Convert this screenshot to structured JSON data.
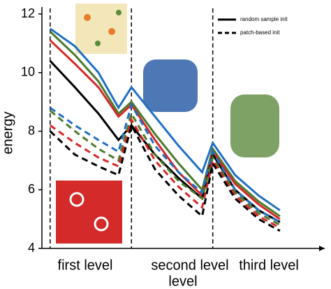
{
  "chart_data": {
    "type": "line",
    "x_label": "level",
    "y_label": "energy",
    "x": [
      0.35,
      1.4,
      2.4,
      3.25,
      3.8,
      4.8,
      5.8,
      6.8,
      7.25,
      8.2,
      9.2,
      10.1
    ],
    "xlim": [
      0,
      12
    ],
    "ylim": [
      4,
      12
    ],
    "yticks": [
      4,
      6,
      8,
      10,
      12
    ],
    "level_boundaries": [
      0.35,
      3.8,
      7.25
    ],
    "level_labels": [
      "first level",
      "second level",
      "third level"
    ],
    "legend": [
      {
        "label": "random sample init",
        "dashed": false
      },
      {
        "label": "patch-based init",
        "dashed": true
      }
    ],
    "series": [
      {
        "color": "#1f6fc4",
        "dashed": false,
        "values": [
          11.5,
          10.9,
          10.0,
          8.8,
          9.5,
          8.5,
          7.5,
          6.6,
          7.6,
          6.5,
          5.8,
          5.3
        ]
      },
      {
        "color": "#4a7a2c",
        "dashed": false,
        "values": [
          11.4,
          10.6,
          9.7,
          8.6,
          9.0,
          7.9,
          6.9,
          6.0,
          7.4,
          6.3,
          5.6,
          5.1
        ]
      },
      {
        "color": "#d62728",
        "dashed": false,
        "values": [
          11.1,
          10.3,
          9.5,
          8.5,
          8.9,
          7.7,
          6.6,
          5.8,
          7.3,
          6.2,
          5.5,
          5.0
        ]
      },
      {
        "color": "#000000",
        "dashed": false,
        "values": [
          10.4,
          9.5,
          8.6,
          7.7,
          8.2,
          7.2,
          6.4,
          5.7,
          7.2,
          6.0,
          5.3,
          4.9
        ]
      },
      {
        "color": "#1f6fc4",
        "dashed": true,
        "values": [
          8.8,
          8.2,
          7.7,
          7.3,
          8.9,
          7.5,
          6.6,
          5.9,
          7.3,
          6.0,
          5.3,
          4.9
        ]
      },
      {
        "color": "#4a7a2c",
        "dashed": true,
        "values": [
          8.7,
          8.0,
          7.4,
          7.0,
          8.6,
          7.2,
          6.3,
          5.7,
          7.1,
          5.9,
          5.2,
          4.8
        ]
      },
      {
        "color": "#d62728",
        "dashed": true,
        "values": [
          8.2,
          7.6,
          7.1,
          6.8,
          8.4,
          7.0,
          6.1,
          5.4,
          7.0,
          5.8,
          5.1,
          4.7
        ]
      },
      {
        "color": "#000000",
        "dashed": true,
        "values": [
          8.0,
          7.2,
          6.8,
          6.5,
          8.2,
          6.7,
          5.8,
          5.1,
          6.9,
          5.7,
          5.0,
          4.6
        ]
      }
    ]
  }
}
